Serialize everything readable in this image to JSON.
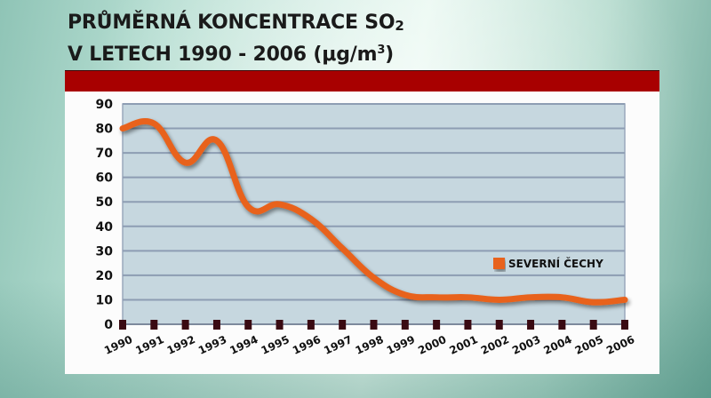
{
  "title": {
    "line1_prefix": "PRŮMĚRNÁ KONCENTRACE SO",
    "line1_sub": "2",
    "line2_prefix": "V LETECH 1990 - 2006 (μg/m",
    "line2_sup": "3",
    "line2_suffix": ")"
  },
  "colors": {
    "accent_bar": "#a80000",
    "line": "#e8621a",
    "plot_bg": "#c6d7df",
    "grid": "#8d9db3",
    "marker": "#3a0a12"
  },
  "legend": {
    "label": "SEVERNÍ ČECHY"
  },
  "chart_data": {
    "type": "line",
    "title": "PRŮMĚRNÁ KONCENTRACE SO2 V LETECH 1990 - 2006 (μg/m3)",
    "xlabel": "",
    "ylabel": "",
    "ylim": [
      0,
      90
    ],
    "yticks": [
      0,
      10,
      20,
      30,
      40,
      50,
      60,
      70,
      80,
      90
    ],
    "grid": true,
    "legend_position": "right-inside",
    "categories": [
      "1990",
      "1991",
      "1992",
      "1993",
      "1994",
      "1995",
      "1996",
      "1997",
      "1998",
      "1999",
      "2000",
      "2001",
      "2002",
      "2003",
      "2004",
      "2005",
      "2006"
    ],
    "series": [
      {
        "name": "SEVERNÍ ČECHY",
        "values": [
          80,
          82,
          66,
          75,
          48,
          49,
          43,
          31,
          19,
          12,
          11,
          11,
          10,
          11,
          11,
          9,
          10
        ]
      }
    ]
  }
}
